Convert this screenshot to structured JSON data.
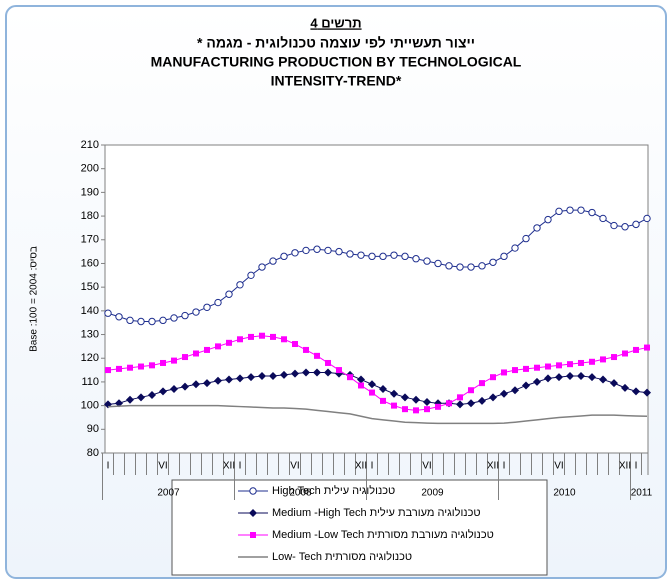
{
  "chart_data": {
    "type": "line",
    "title": [
      "תרשים 4",
      "ייצור תעשייתי לפי עוצמה טכנולוגית - מגמה *",
      "MANUFACTURING PRODUCTION BY TECHNOLOGICAL",
      "INTENSITY-TREND*"
    ],
    "y_label": "Base :100 = 2004  :בסיס",
    "categories": [
      "I",
      null,
      null,
      null,
      null,
      "VI",
      null,
      null,
      null,
      null,
      null,
      "XII",
      "I",
      null,
      null,
      null,
      null,
      "VI",
      null,
      null,
      null,
      null,
      null,
      "XII",
      "I",
      null,
      null,
      null,
      null,
      "VI",
      null,
      null,
      null,
      null,
      null,
      "XII",
      "I",
      null,
      null,
      null,
      null,
      "VI",
      null,
      null,
      null,
      null,
      null,
      "XII",
      "I",
      null
    ],
    "years": [
      "2007",
      "2008",
      "2009",
      "2010",
      "2011"
    ],
    "ylim": [
      80,
      210
    ],
    "yticks": [
      80,
      90,
      100,
      110,
      120,
      130,
      140,
      150,
      160,
      170,
      180,
      190,
      200,
      210
    ],
    "grid": false,
    "series": [
      {
        "name": "High Tech טכנולוגיה עילית",
        "color": "#1f2f8f",
        "marker": "circle",
        "values": [
          139,
          137.5,
          136,
          135.5,
          135.5,
          136,
          137,
          138,
          139.5,
          141.5,
          143.5,
          147,
          151,
          155,
          158.5,
          161,
          163,
          164.5,
          165.5,
          166,
          165.5,
          165,
          164,
          163.5,
          163,
          163,
          163.5,
          163,
          162,
          161,
          160,
          159,
          158.5,
          158.5,
          159,
          160.5,
          163,
          166.5,
          170.5,
          175,
          178.5,
          182,
          182.5,
          182.5,
          181.5,
          179,
          176,
          175.5,
          176.5,
          179
        ]
      },
      {
        "name": "Medium -High Tech  טכנולוגיה מעורבת עילית",
        "color": "#0a0a5a",
        "marker": "diamond",
        "values": [
          100.5,
          101,
          102.5,
          103.5,
          104.5,
          106,
          107,
          108,
          109,
          109.5,
          110.5,
          111,
          111.5,
          112,
          112.5,
          112.5,
          113,
          113.5,
          114,
          114,
          114,
          113.5,
          113,
          111,
          109,
          107,
          105,
          103.5,
          102.5,
          101.5,
          101,
          101,
          100.5,
          101,
          102,
          103.5,
          105,
          106.5,
          108.5,
          110,
          111.5,
          112,
          112.5,
          112.5,
          112,
          111,
          109.5,
          107.5,
          106,
          105.5
        ]
      },
      {
        "name": "Medium -Low Tech  טכנולוגיה מעורבת מסורתית",
        "color": "#ff00ff",
        "marker": "square",
        "values": [
          115,
          115.5,
          116,
          116.5,
          117,
          118,
          119,
          120.5,
          122,
          123.5,
          125,
          126.5,
          128,
          129,
          129.5,
          129,
          128,
          126,
          123.5,
          121,
          118,
          115,
          112,
          108.5,
          105.5,
          102,
          100,
          98.5,
          98,
          98.5,
          99.5,
          101,
          103.5,
          106.5,
          109.5,
          112,
          114,
          115,
          115.5,
          116,
          116.5,
          117,
          117.5,
          118,
          118.5,
          119.5,
          120.5,
          122,
          123.5,
          124.5
        ]
      },
      {
        "name": "Low- Tech  טכנולוגיה מסורתית",
        "color": "#808080",
        "marker": "none",
        "values": [
          99.5,
          99.8,
          100,
          100,
          100,
          100,
          100,
          100,
          100,
          100,
          100,
          99.8,
          99.6,
          99.4,
          99.2,
          99,
          99,
          98.8,
          98.5,
          98,
          97.5,
          97,
          96.5,
          95.5,
          94.5,
          94,
          93.5,
          93,
          92.8,
          92.6,
          92.5,
          92.5,
          92.5,
          92.5,
          92.5,
          92.5,
          92.6,
          93,
          93.5,
          94,
          94.5,
          95,
          95.3,
          95.6,
          96,
          96,
          96,
          95.8,
          95.6,
          95.5
        ]
      }
    ]
  }
}
